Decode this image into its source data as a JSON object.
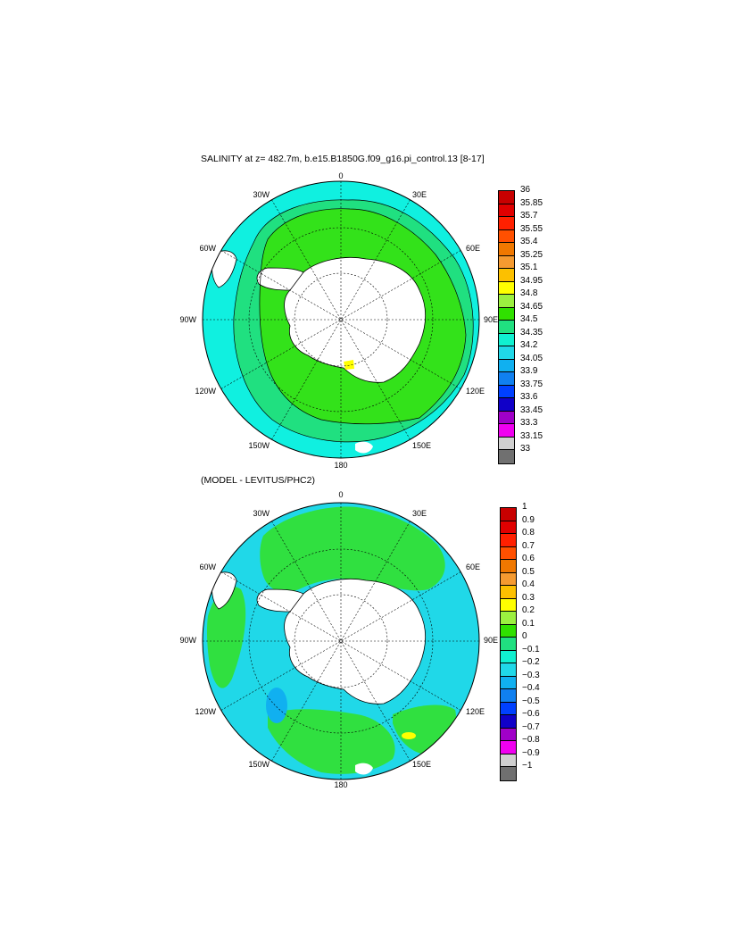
{
  "panels": [
    {
      "title": "SALINITY at z= 482.7m, b.e15.B1850G.f09_g16.pi_control.13 [8-17]",
      "lon_labels": {
        "top": "0",
        "bottom": "180",
        "left": "90W",
        "right": "90E",
        "w30": "30W",
        "w60": "60W",
        "w120": "120W",
        "w150": "150W",
        "e30": "30E",
        "e60": "60E",
        "e120": "120E",
        "e150": "150E"
      },
      "colorbar_labels": [
        "36",
        "35.85",
        "35.7",
        "35.55",
        "35.4",
        "35.25",
        "35.1",
        "34.95",
        "34.8",
        "34.65",
        "34.5",
        "34.35",
        "34.2",
        "34.05",
        "33.9",
        "33.75",
        "33.6",
        "33.45",
        "33.3",
        "33.15",
        "33"
      ],
      "colorbar_colors": [
        "#c80000",
        "#e00000",
        "#ff2000",
        "#ff5000",
        "#f07800",
        "#f59a30",
        "#fcc000",
        "#ffff00",
        "#9cf040",
        "#30e000",
        "#20e080",
        "#10f0d0",
        "#20d8e8",
        "#10b0f0",
        "#1080f0",
        "#0040ff",
        "#1000c8",
        "#a000c8",
        "#f000f0",
        "#d0d0d0",
        "#707070"
      ]
    },
    {
      "title": "(MODEL - LEVITUS/PHC2)",
      "lon_labels": {
        "top": "0",
        "bottom": "180",
        "left": "90W",
        "right": "90E",
        "w30": "30W",
        "w60": "60W",
        "w120": "120W",
        "w150": "150W",
        "e30": "30E",
        "e60": "60E",
        "e120": "120E",
        "e150": "150E"
      },
      "colorbar_labels": [
        "1",
        "0.9",
        "0.8",
        "0.7",
        "0.6",
        "0.5",
        "0.4",
        "0.3",
        "0.2",
        "0.1",
        "0",
        "−0.1",
        "−0.2",
        "−0.3",
        "−0.4",
        "−0.5",
        "−0.6",
        "−0.7",
        "−0.8",
        "−0.9",
        "−1"
      ],
      "colorbar_colors": [
        "#c80000",
        "#e00000",
        "#ff2000",
        "#ff5000",
        "#f07800",
        "#f59a30",
        "#fcc000",
        "#ffff00",
        "#9cf040",
        "#30e000",
        "#20e080",
        "#10f0d0",
        "#20d8e8",
        "#10b0f0",
        "#1080f0",
        "#0040ff",
        "#1000c8",
        "#a000c8",
        "#f000f0",
        "#d0d0d0",
        "#707070"
      ]
    }
  ]
}
